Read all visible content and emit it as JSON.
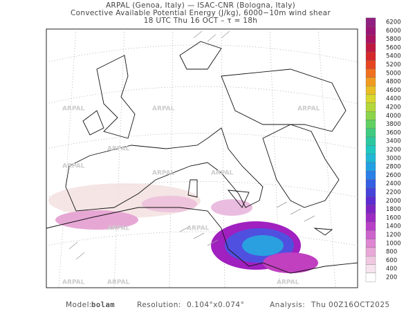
{
  "header": {
    "line1": "ARPAL (Genoa, Italy)  —  ISAC-CNR (Bologna, Italy)",
    "line2": "Convective Available Potential Energy (J/kg), 6000−10m wind shear",
    "line3": "18 UTC Thu 16 OCT  –  τ = 18h"
  },
  "watermark": "ARPAL",
  "colorbar": {
    "labels": [
      6200,
      6000,
      5800,
      5600,
      5400,
      5200,
      5000,
      4800,
      4600,
      4400,
      4200,
      4000,
      3800,
      3600,
      3400,
      3200,
      3000,
      2800,
      2600,
      2400,
      2200,
      2000,
      1800,
      1600,
      1400,
      1200,
      1000,
      800,
      600,
      400,
      200
    ]
  },
  "footer": {
    "model_label": "Model:",
    "model": "bolam",
    "resolution_label": "Resolution:",
    "resolution": "0.104°x0.074°",
    "analysis_label": "Analysis:",
    "analysis": "Thu 00Z16OCT2025"
  }
}
